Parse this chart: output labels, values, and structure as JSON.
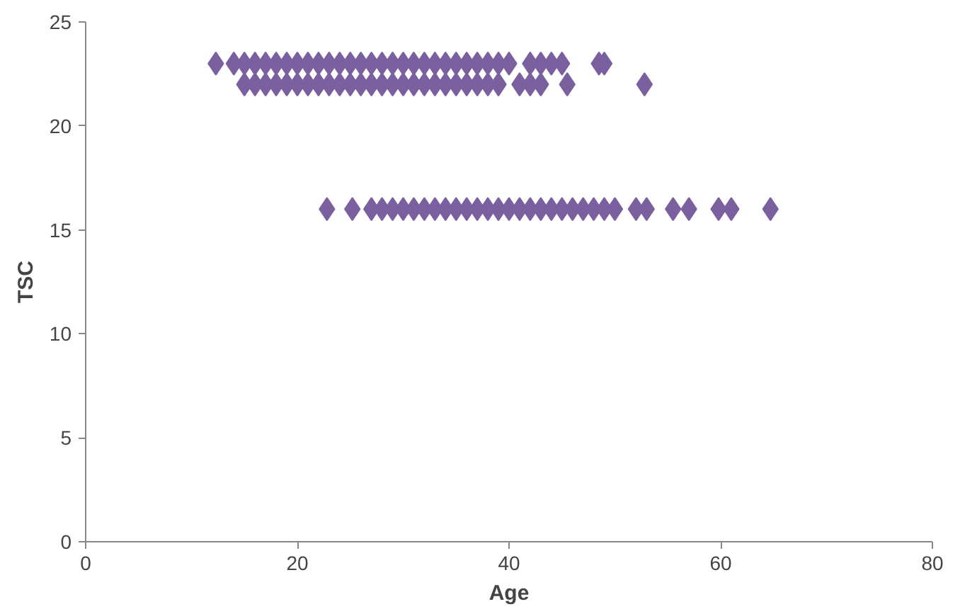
{
  "chart_data": {
    "type": "scatter",
    "xlabel": "Age",
    "ylabel": "TSC",
    "marker": "diamond",
    "grid": false,
    "xlim": [
      0,
      80
    ],
    "xticks": [
      0,
      20,
      40,
      60,
      80
    ],
    "ylim": [
      0,
      25
    ],
    "yticks": [
      0,
      5,
      10,
      15,
      20,
      25
    ],
    "series": [
      {
        "color": "#7b60a0",
        "x": [
          12.3,
          14,
          15,
          16,
          17,
          18,
          19,
          20,
          21,
          22,
          23,
          24,
          25,
          26,
          27,
          28,
          29,
          30,
          31,
          32,
          33,
          34,
          35,
          36,
          37,
          38,
          39,
          40,
          42,
          43,
          44,
          45,
          48.5,
          49
        ],
        "values": [
          23,
          23,
          23,
          23,
          23,
          23,
          23,
          23,
          23,
          23,
          23,
          23,
          23,
          23,
          23,
          23,
          23,
          23,
          23,
          23,
          23,
          23,
          23,
          23,
          23,
          23,
          23,
          23,
          23,
          23,
          23,
          23,
          23,
          23
        ]
      },
      {
        "color": "#7b60a0",
        "x": [
          15,
          16,
          17,
          18,
          19,
          20,
          21,
          22,
          23,
          24,
          25,
          26,
          27,
          28,
          29,
          30,
          31,
          32,
          33,
          34,
          35,
          36,
          37,
          38,
          39,
          41,
          42,
          43,
          45.5,
          52.8
        ],
        "values": [
          22,
          22,
          22,
          22,
          22,
          22,
          22,
          22,
          22,
          22,
          22,
          22,
          22,
          22,
          22,
          22,
          22,
          22,
          22,
          22,
          22,
          22,
          22,
          22,
          22,
          22,
          22,
          22,
          22,
          22
        ]
      },
      {
        "color": "#7b60a0",
        "x": [
          22.8,
          25.2,
          27,
          28,
          29,
          30,
          31,
          32,
          33,
          34,
          35,
          36,
          37,
          38,
          39,
          40,
          41,
          42,
          43,
          44,
          45,
          46,
          47,
          48,
          49,
          50,
          52,
          53,
          55.5,
          57,
          59.8,
          61,
          64.7
        ],
        "values": [
          16,
          16,
          16,
          16,
          16,
          16,
          16,
          16,
          16,
          16,
          16,
          16,
          16,
          16,
          16,
          16,
          16,
          16,
          16,
          16,
          16,
          16,
          16,
          16,
          16,
          16,
          16,
          16,
          16,
          16,
          16,
          16,
          16
        ]
      }
    ]
  }
}
